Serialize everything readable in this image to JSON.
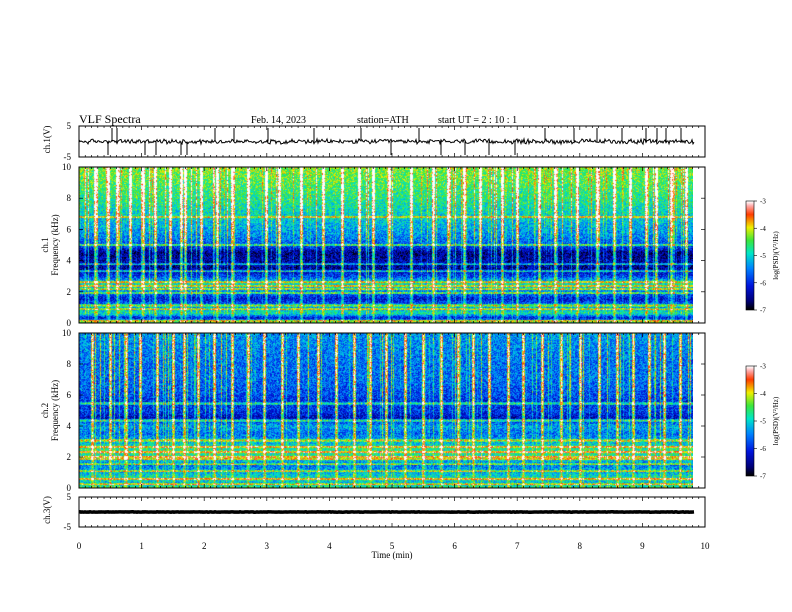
{
  "header": {
    "title": "VLF  Spectra",
    "date": "Feb. 14, 2023",
    "station": "station=ATH",
    "start": "start  UT  =   2  : 10 : 1"
  },
  "chart_data": {
    "type": "heatmap",
    "x_label": "Time  (min)",
    "x_ticks": [
      "0",
      "1",
      "2",
      "3",
      "4",
      "5",
      "6",
      "7",
      "8",
      "9",
      "10"
    ],
    "xlim": [
      0,
      10
    ],
    "data_end_min": 9.83,
    "panels": [
      {
        "id": "ch1-waveform",
        "type": "line",
        "ylabel": "ch.1(V)",
        "ylim": [
          -5,
          5
        ],
        "y_ticks": [
          "5",
          "-5"
        ],
        "baseline": 0,
        "noise_amplitude": 0.6,
        "spikes_min": [
          0.47,
          0.52,
          0.61,
          1.05,
          1.23,
          1.63,
          1.72,
          2.17,
          2.48,
          3.02,
          3.76,
          4.5,
          4.98,
          5.43,
          5.78,
          6.17,
          6.55,
          6.96,
          7.44,
          7.9,
          8.27,
          8.68,
          9.05,
          9.23,
          9.38,
          9.62
        ]
      },
      {
        "id": "ch1-spectrogram",
        "type": "heatmap",
        "channel_label": "ch.1",
        "ylabel": "Frequency  (kHz)",
        "ylim": [
          0,
          10
        ],
        "y_ticks": [
          "0",
          "2",
          "4",
          "6",
          "8",
          "10"
        ],
        "colorbar": {
          "label": "log(PSD)(V²/Hz)",
          "ticks": [
            "-3",
            "-4",
            "-5",
            "-6",
            "-7"
          ],
          "range": [
            -7,
            -3
          ]
        },
        "profile_khz": [
          0,
          0.3,
          0.6,
          1.0,
          1.5,
          2.0,
          2.5,
          3.0,
          3.5,
          4.0,
          4.5,
          5.0,
          5.5,
          6.0,
          7.0,
          8.0,
          9.0,
          10.0
        ],
        "profile_log_psd": [
          -4.6,
          -6.2,
          -4.8,
          -5.4,
          -6.2,
          -5.5,
          -4.9,
          -5.9,
          -6.5,
          -6.4,
          -6.6,
          -5.7,
          -5.5,
          -5.3,
          -5.0,
          -4.7,
          -4.5,
          -4.3
        ],
        "lines_khz": [
          0.12,
          0.85,
          1.1,
          1.9,
          2.15,
          2.35,
          2.6,
          3.3,
          3.75,
          5.0,
          6.8
        ],
        "sferic_min": [
          0.25,
          0.47,
          0.6,
          0.81,
          1.02,
          1.22,
          1.45,
          1.63,
          1.7,
          1.95,
          2.2,
          2.45,
          2.7,
          2.98,
          3.2,
          3.55,
          3.9,
          4.2,
          4.48,
          4.7,
          4.95,
          5.3,
          5.65,
          5.9,
          6.15,
          6.4,
          6.75,
          7.0,
          7.35,
          7.6,
          7.95,
          8.28,
          8.55,
          8.8,
          9.05,
          9.22,
          9.45,
          9.7
        ]
      },
      {
        "id": "ch2-spectrogram",
        "type": "heatmap",
        "channel_label": "ch.2",
        "ylabel": "Frequency  (kHz)",
        "ylim": [
          0,
          10
        ],
        "y_ticks": [
          "0",
          "2",
          "4",
          "6",
          "8",
          "10"
        ],
        "colorbar": {
          "label": "log(PSD)(V²/Hz)",
          "ticks": [
            "-3",
            "-4",
            "-5",
            "-6",
            "-7"
          ],
          "range": [
            -7,
            -3
          ]
        },
        "profile_khz": [
          0,
          0.3,
          0.6,
          1.0,
          1.5,
          2.0,
          2.5,
          3.0,
          3.5,
          4.0,
          4.5,
          5.0,
          5.5,
          6.0,
          7.0,
          8.0,
          9.0,
          10.0
        ],
        "profile_log_psd": [
          -4.7,
          -5.2,
          -4.8,
          -5.3,
          -5.6,
          -4.8,
          -4.7,
          -5.3,
          -5.6,
          -5.3,
          -6.3,
          -5.9,
          -6.0,
          -5.8,
          -5.6,
          -5.6,
          -5.5,
          -5.4
        ],
        "lines_khz": [
          0.2,
          0.55,
          1.05,
          1.5,
          1.85,
          2.0,
          2.3,
          2.65,
          3.05,
          4.35,
          5.45
        ],
        "sferic_min": [
          0.2,
          0.5,
          0.75,
          0.98,
          1.25,
          1.5,
          1.68,
          1.9,
          2.15,
          2.45,
          2.7,
          2.95,
          3.25,
          3.5,
          3.82,
          4.1,
          4.4,
          4.65,
          4.9,
          5.2,
          5.5,
          5.78,
          6.05,
          6.3,
          6.55,
          6.85,
          7.1,
          7.4,
          7.7,
          8.0,
          8.3,
          8.6,
          8.85,
          9.1,
          9.35,
          9.6
        ]
      },
      {
        "id": "ch3-waveform",
        "type": "line",
        "ylabel": "ch.3(V)",
        "ylim": [
          -5,
          5
        ],
        "y_ticks": [
          "5",
          "-5"
        ],
        "baseline": 0,
        "noise_amplitude": 0.05
      }
    ]
  }
}
